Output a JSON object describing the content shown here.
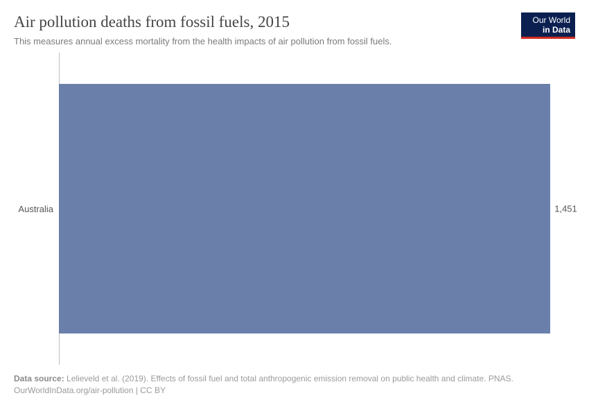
{
  "header": {
    "title": "Air pollution deaths from fossil fuels, 2015",
    "subtitle": "This measures annual excess mortality from the health impacts of air pollution from fossil fuels."
  },
  "logo": {
    "line1": "Our World",
    "line2": "in Data",
    "bg_color": "#0b2050",
    "underline_color": "#d42b21"
  },
  "chart": {
    "type": "bar",
    "orientation": "horizontal",
    "background_color": "#ffffff",
    "axis_line_color": "#bfbfbf",
    "label_fontsize": 13,
    "label_color": "#555555",
    "value_fontsize": 13,
    "value_color": "#555555",
    "xlim": [
      0,
      1451
    ],
    "bars": [
      {
        "category": "Australia",
        "value": 1451,
        "value_label": "1,451",
        "color": "#6a80ab",
        "width_pct": 95.2
      }
    ]
  },
  "footer": {
    "source_label": "Data source:",
    "source_text": "Lelieveld et al. (2019). Effects of fossil fuel and total anthropogenic emission removal on public health and climate. PNAS.",
    "link_line": "OurWorldInData.org/air-pollution | CC BY"
  }
}
